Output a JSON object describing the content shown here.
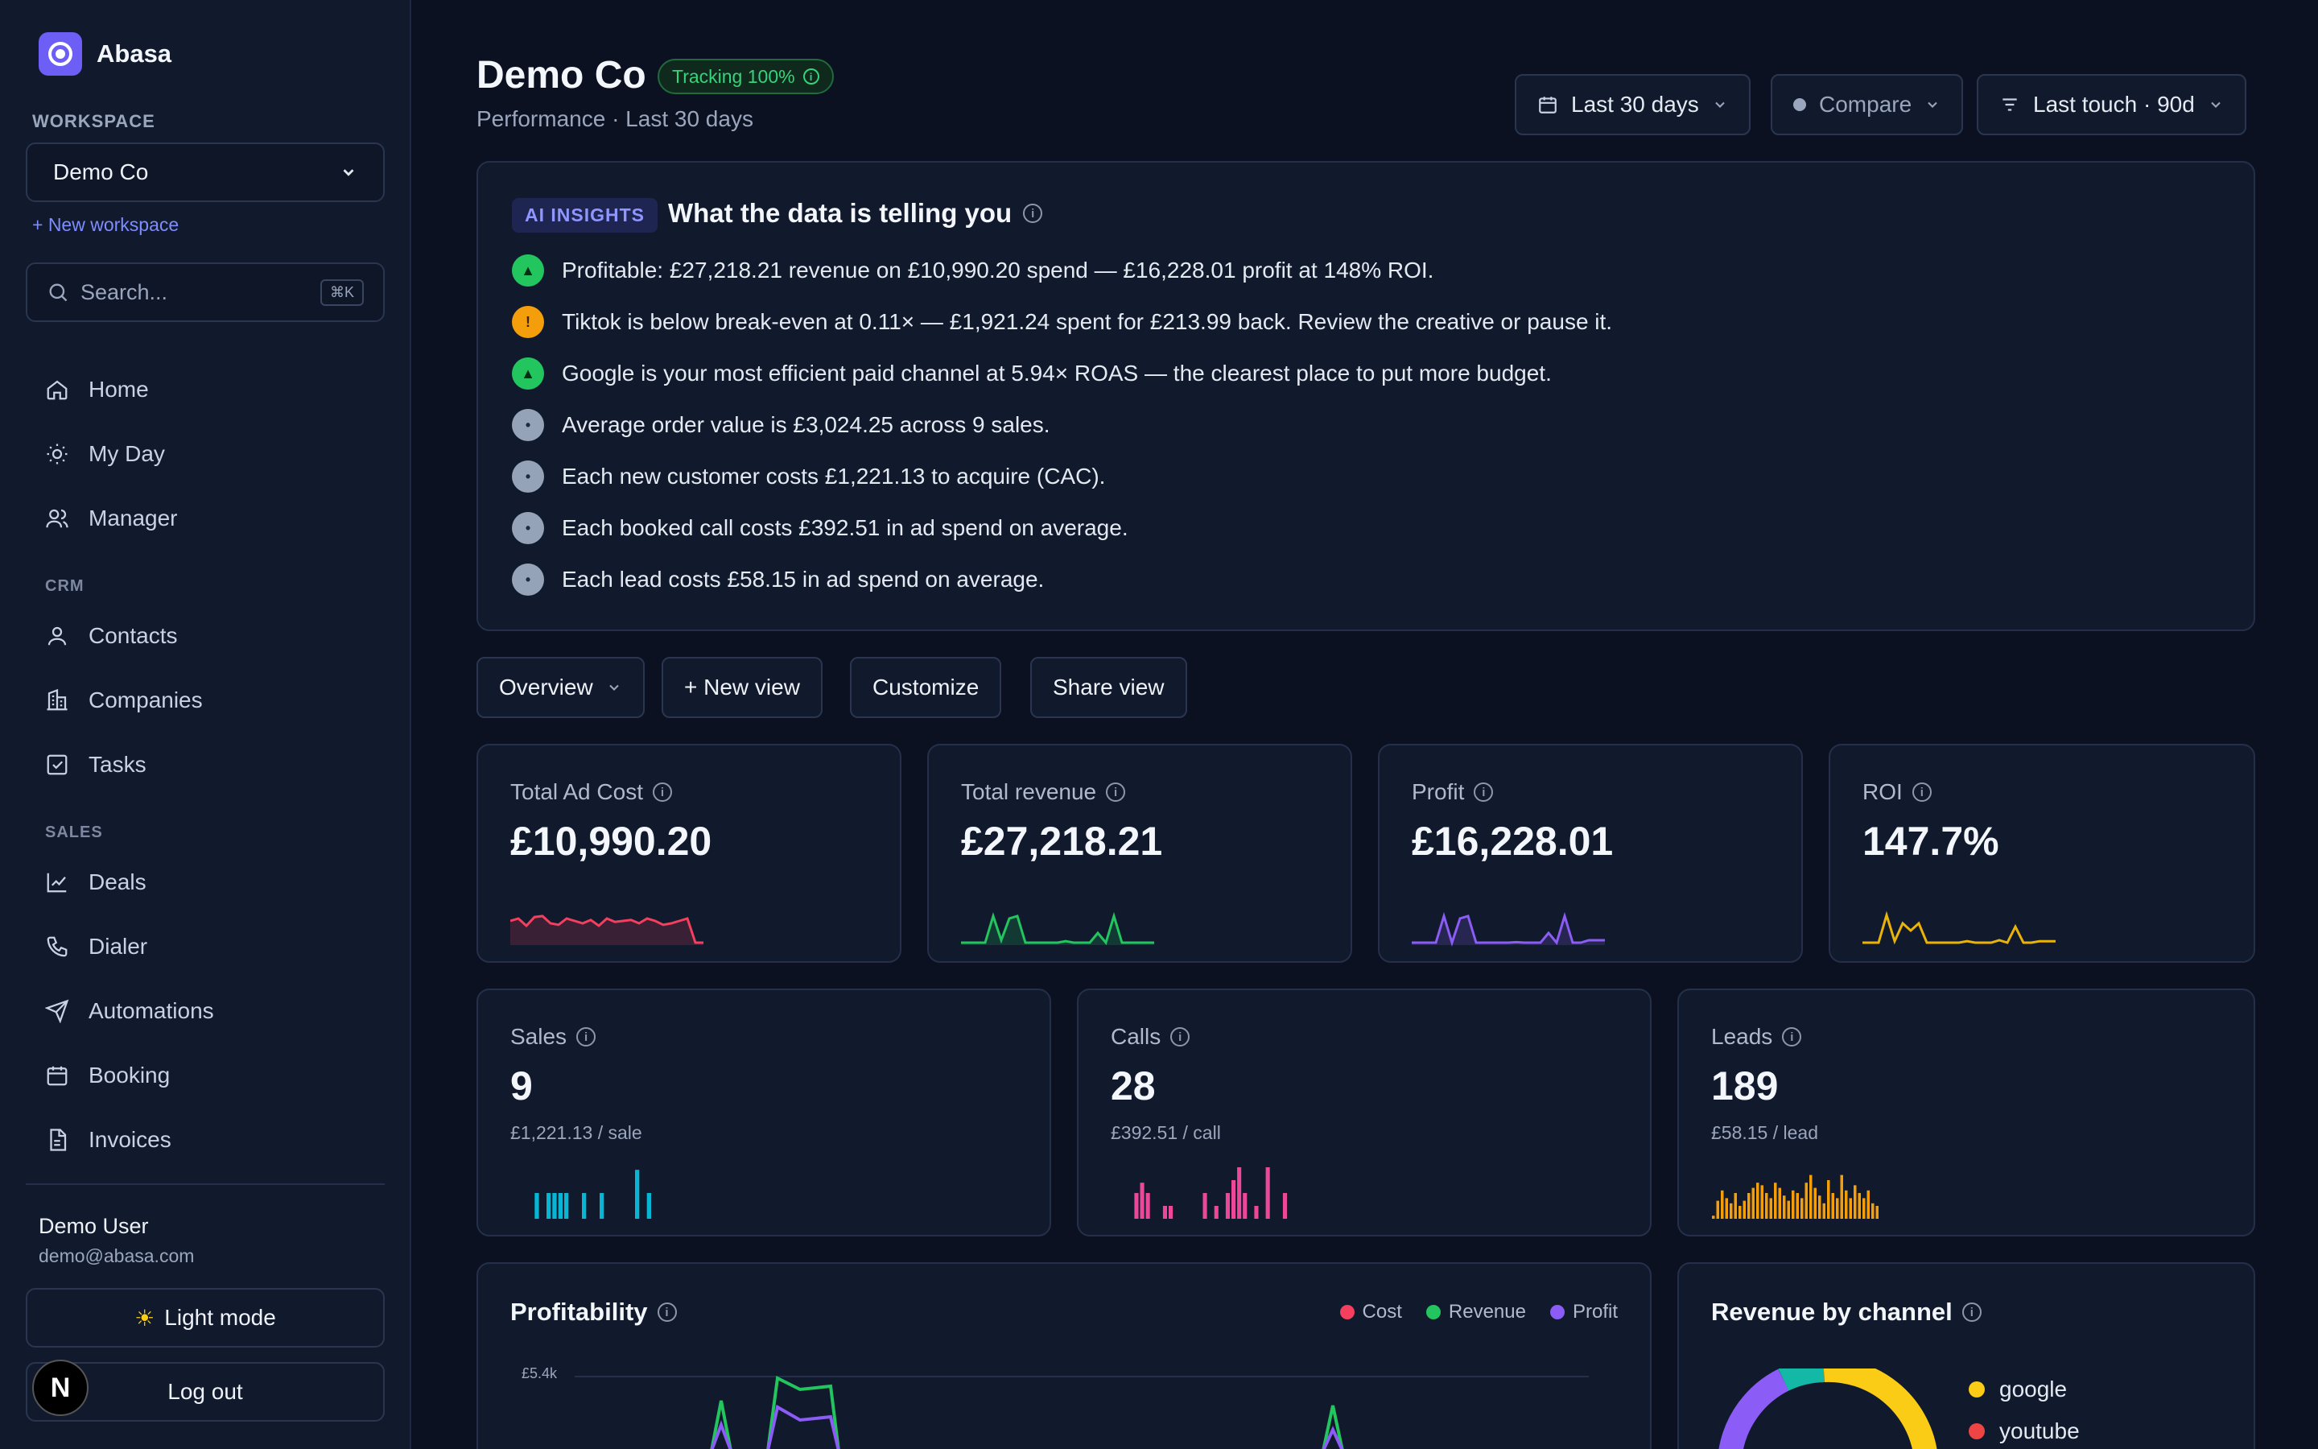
{
  "sidebar": {
    "brand": "Abasa",
    "workspace_label": "WORKSPACE",
    "workspace_selected": "Demo Co",
    "new_workspace": "+ New workspace",
    "search_placeholder": "Search...",
    "search_shortcut": "⌘K",
    "nav": [
      "Home",
      "My Day",
      "Manager"
    ],
    "crm_label": "CRM",
    "crm": [
      "Contacts",
      "Companies",
      "Tasks"
    ],
    "sales_label": "SALES",
    "sales": [
      "Deals",
      "Dialer",
      "Automations",
      "Booking",
      "Invoices"
    ],
    "user_name": "Demo User",
    "user_email": "demo@abasa.com",
    "light_mode": "Light mode",
    "logout": "Log out",
    "badge": "N"
  },
  "header": {
    "title": "Demo Co",
    "tracking": "Tracking 100%",
    "subtitle": "Performance · Last 30 days",
    "date_range": "Last 30 days",
    "compare": "Compare",
    "attribution": "Last touch · 90d"
  },
  "insights": {
    "tag": "AI INSIGHTS",
    "title": "What the data is telling you",
    "items": [
      "Profitable: £27,218.21 revenue on £10,990.20 spend — £16,228.01 profit at 148% ROI.",
      "Tiktok is below break-even at 0.11× — £1,921.24 spent for £213.99 back. Review the creative or pause it.",
      "Google is your most efficient paid channel at 5.94× ROAS — the clearest place to put more budget.",
      "Average order value is £3,024.25 across 9 sales.",
      "Each new customer costs £1,221.13 to acquire (CAC).",
      "Each booked call costs £392.51 in ad spend on average.",
      "Each lead costs £58.15 in ad spend on average."
    ],
    "kinds": [
      "up",
      "warn",
      "up",
      "info",
      "info",
      "info",
      "info"
    ]
  },
  "views": {
    "overview": "Overview",
    "new_view": "+ New view",
    "customize": "Customize",
    "share": "Share view"
  },
  "kpis": {
    "ad_cost": {
      "label": "Total Ad Cost",
      "value": "£10,990.20",
      "color": "#f43f5e"
    },
    "revenue": {
      "label": "Total revenue",
      "value": "£27,218.21",
      "color": "#22c55e"
    },
    "profit": {
      "label": "Profit",
      "value": "£16,228.01",
      "color": "#8b5cf6"
    },
    "roi": {
      "label": "ROI",
      "value": "147.7%",
      "color": "#eab308"
    },
    "sales": {
      "label": "Sales",
      "value": "9",
      "sub": "£1,221.13 / sale",
      "color": "#06b6d4"
    },
    "calls": {
      "label": "Calls",
      "value": "28",
      "sub": "£392.51 / call",
      "color": "#ec4899"
    },
    "leads": {
      "label": "Leads",
      "value": "189",
      "sub": "£58.15 / lead",
      "color": "#f59e0b"
    }
  },
  "profitability": {
    "title": "Profitability",
    "legend": [
      {
        "name": "Cost",
        "color": "#f43f5e"
      },
      {
        "name": "Revenue",
        "color": "#22c55e"
      },
      {
        "name": "Profit",
        "color": "#8b5cf6"
      }
    ],
    "ytick_top": "£5.4k"
  },
  "revenue_by_channel": {
    "title": "Revenue by channel",
    "channels": [
      {
        "name": "google",
        "color": "#facc15"
      },
      {
        "name": "youtube",
        "color": "#ef4444"
      }
    ]
  }
}
